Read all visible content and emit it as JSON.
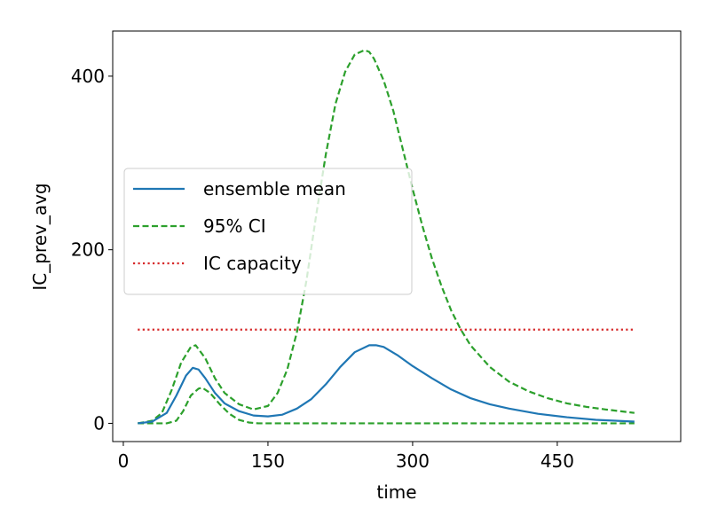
{
  "chart_data": {
    "type": "line",
    "title": "",
    "xlabel": "time",
    "ylabel": "IC_prev_avg",
    "xlim": [
      -11,
      578
    ],
    "ylim": [
      -21,
      452
    ],
    "xticks": [
      0,
      150,
      300,
      450
    ],
    "yticks": [
      0,
      200,
      400
    ],
    "xtick_labels": [
      "0",
      "150",
      "300",
      "450"
    ],
    "ytick_labels": [
      "0",
      "200",
      "400"
    ],
    "grid": false,
    "legend_position": "center-left",
    "series": [
      {
        "name": "ensemble mean",
        "style": "solid",
        "color": "#1f77b4",
        "x": [
          15,
          30,
          45,
          55,
          65,
          72,
          78,
          85,
          95,
          105,
          120,
          135,
          150,
          165,
          180,
          195,
          210,
          225,
          240,
          255,
          262,
          270,
          285,
          300,
          320,
          340,
          360,
          380,
          400,
          430,
          460,
          490,
          530
        ],
        "y": [
          0,
          2,
          12,
          32,
          55,
          64,
          62,
          52,
          35,
          23,
          14,
          9,
          8,
          10,
          17,
          28,
          45,
          65,
          82,
          90,
          90,
          88,
          78,
          66,
          52,
          39,
          29,
          22,
          17,
          11,
          7,
          4,
          2
        ]
      },
      {
        "name": "95% CI",
        "style": "dashed",
        "color": "#2ca02c",
        "x": [
          15,
          30,
          40,
          50,
          60,
          70,
          75,
          85,
          95,
          105,
          120,
          135,
          150,
          160,
          170,
          180,
          190,
          200,
          210,
          220,
          230,
          240,
          250,
          255,
          260,
          270,
          280,
          290,
          300,
          310,
          320,
          330,
          340,
          350,
          360,
          380,
          400,
          420,
          440,
          460,
          480,
          500,
          530
        ],
        "y": [
          0,
          3,
          12,
          38,
          70,
          88,
          90,
          75,
          52,
          35,
          22,
          16,
          20,
          35,
          62,
          105,
          165,
          240,
          310,
          368,
          405,
          425,
          430,
          428,
          420,
          395,
          360,
          315,
          270,
          228,
          190,
          158,
          130,
          108,
          90,
          65,
          48,
          37,
          29,
          23,
          19,
          16,
          12
        ]
      },
      {
        "name": "",
        "style": "dashed",
        "color": "#2ca02c",
        "x": [
          15,
          45,
          55,
          62,
          70,
          78,
          82,
          90,
          100,
          110,
          120,
          130,
          140,
          150,
          530
        ],
        "y": [
          0,
          0,
          3,
          14,
          32,
          40,
          41,
          35,
          22,
          11,
          4,
          1,
          0,
          0,
          0
        ]
      },
      {
        "name": "IC capacity",
        "style": "dotted",
        "color": "#d62728",
        "x": [
          15,
          530
        ],
        "y": [
          108,
          108
        ]
      }
    ]
  }
}
